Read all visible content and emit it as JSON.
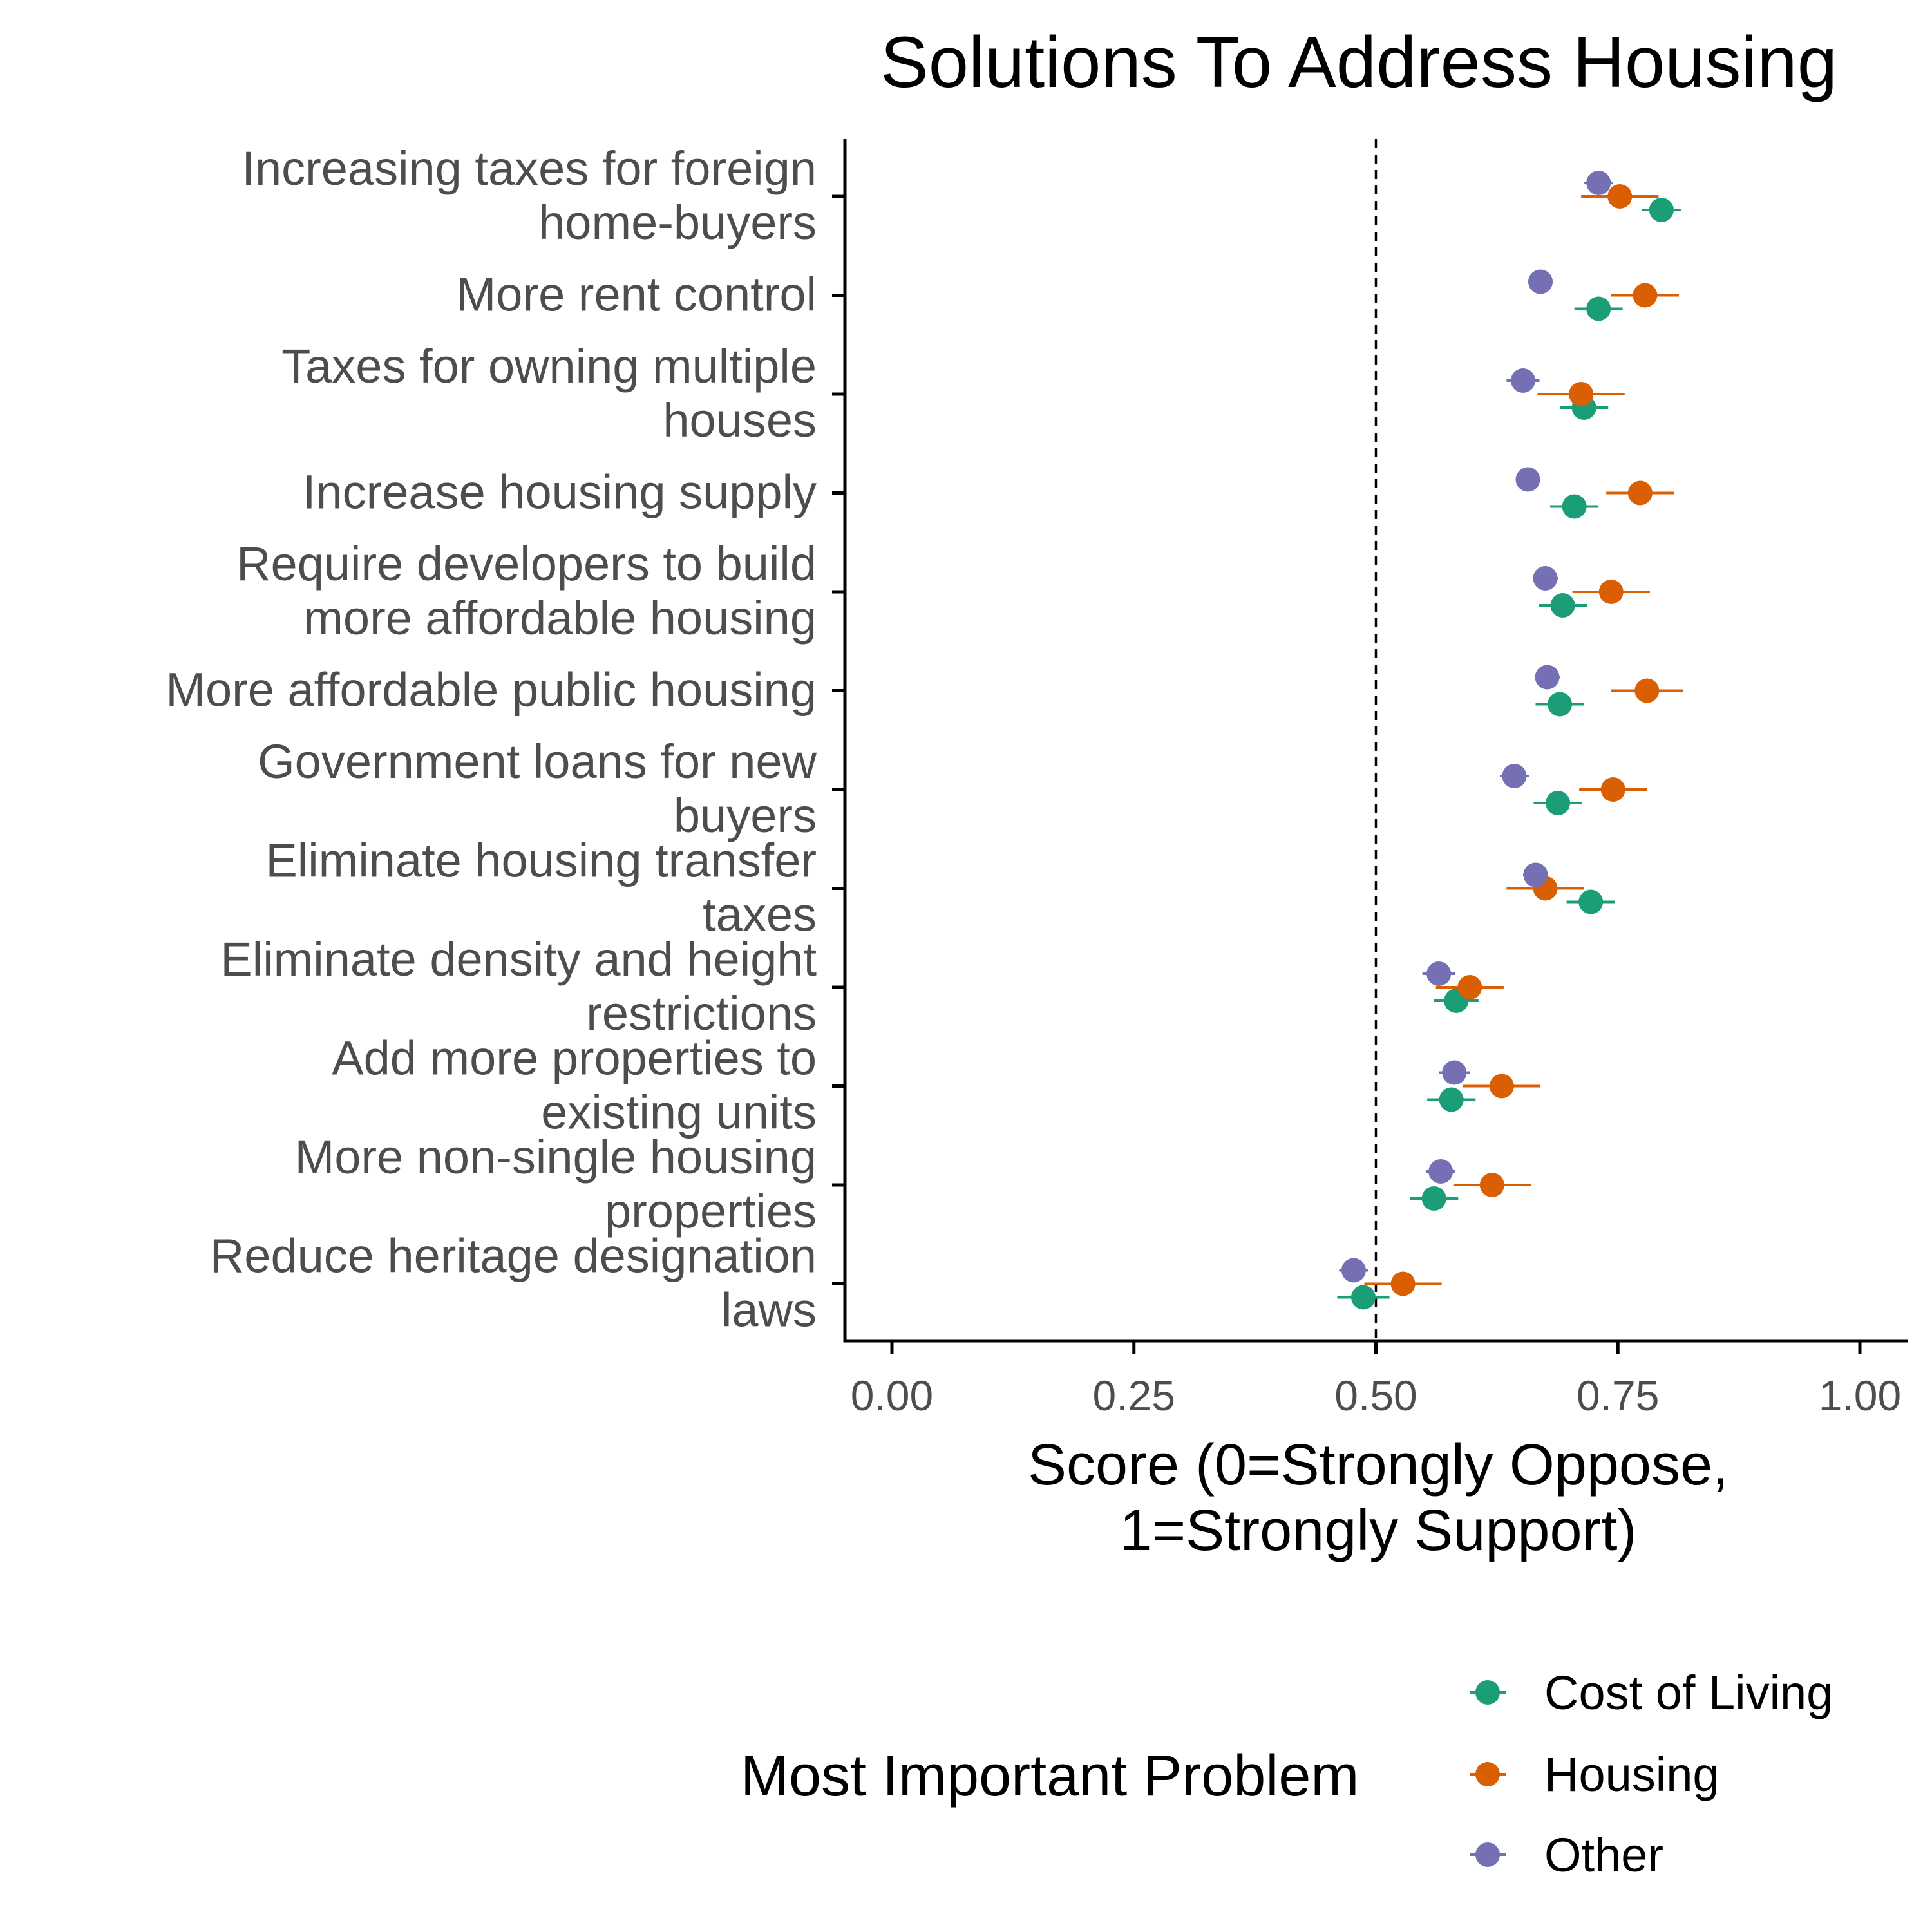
{
  "chart_data": {
    "type": "scatter",
    "subtype": "dot-and-whisker",
    "title": "Solutions To Address Housing",
    "xlabel": [
      "Score (0=Strongly Oppose,",
      "1=Strongly Support)"
    ],
    "ylabel": "",
    "xlim": [
      -0.02,
      1.05
    ],
    "xticks": [
      "0.00",
      "0.25",
      "0.50",
      "0.75",
      "1.00"
    ],
    "xtick_values": [
      0,
      0.25,
      0.5,
      0.75,
      1.0
    ],
    "reference_line": {
      "x": 0.5,
      "style": "dashed"
    },
    "grid": false,
    "categories": [
      [
        "Increasing taxes for foreign",
        "home-buyers"
      ],
      [
        "More rent control"
      ],
      [
        "Taxes for owning multiple",
        "houses"
      ],
      [
        "Increase housing supply"
      ],
      [
        "Require developers to build",
        "more affordable housing"
      ],
      [
        "More affordable public housing"
      ],
      [
        "Government loans for new",
        "buyers"
      ],
      [
        "Eliminate housing transfer",
        "taxes"
      ],
      [
        "Eliminate density and height",
        "restrictions"
      ],
      [
        "Add more properties to",
        "existing units"
      ],
      [
        "More non-single housing",
        "properties"
      ],
      [
        "Reduce heritage designation",
        "laws"
      ]
    ],
    "legend": {
      "title": "Most Important Problem",
      "position": "bottom"
    },
    "series": [
      {
        "name": "Cost of Living",
        "color": "#1b9e77",
        "values": [
          0.795,
          0.73,
          0.715,
          0.705,
          0.693,
          0.69,
          0.688,
          0.722,
          0.583,
          0.578,
          0.56,
          0.487
        ],
        "ci_low": [
          0.775,
          0.705,
          0.69,
          0.68,
          0.668,
          0.665,
          0.663,
          0.697,
          0.56,
          0.553,
          0.535,
          0.46
        ],
        "ci_high": [
          0.815,
          0.755,
          0.74,
          0.73,
          0.718,
          0.715,
          0.713,
          0.747,
          0.606,
          0.603,
          0.585,
          0.514
        ]
      },
      {
        "name": "Housing",
        "color": "#d95f02",
        "values": [
          0.752,
          0.778,
          0.712,
          0.773,
          0.743,
          0.78,
          0.745,
          0.675,
          0.597,
          0.63,
          0.62,
          0.528
        ],
        "ci_low": [
          0.712,
          0.743,
          0.667,
          0.738,
          0.703,
          0.743,
          0.71,
          0.635,
          0.562,
          0.59,
          0.58,
          0.488
        ],
        "ci_high": [
          0.792,
          0.813,
          0.757,
          0.808,
          0.783,
          0.817,
          0.78,
          0.715,
          0.632,
          0.67,
          0.66,
          0.568
        ]
      },
      {
        "name": "Other",
        "color": "#7570b3",
        "values": [
          0.73,
          0.67,
          0.652,
          0.657,
          0.675,
          0.677,
          0.643,
          0.665,
          0.565,
          0.581,
          0.567,
          0.477
        ],
        "ci_low": [
          0.715,
          0.657,
          0.635,
          0.645,
          0.662,
          0.664,
          0.628,
          0.652,
          0.548,
          0.565,
          0.552,
          0.462
        ],
        "ci_high": [
          0.745,
          0.683,
          0.669,
          0.669,
          0.688,
          0.69,
          0.658,
          0.678,
          0.582,
          0.597,
          0.582,
          0.492
        ]
      }
    ]
  }
}
